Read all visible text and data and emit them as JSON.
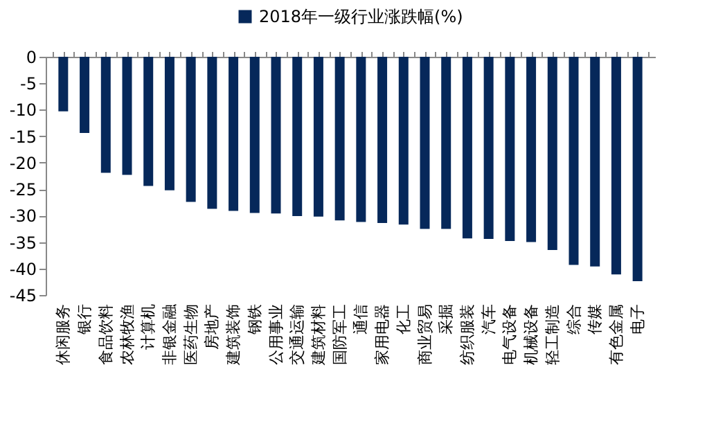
{
  "chart_data": {
    "type": "bar",
    "categories": [
      "休闲服务",
      "银行",
      "食品饮料",
      "农林牧渔",
      "计算机",
      "非银金融",
      "医药生物",
      "房地产",
      "建筑装饰",
      "钢铁",
      "公用事业",
      "交通运输",
      "建筑材料",
      "国防军工",
      "通信",
      "家用电器",
      "化工",
      "商业贸易",
      "采掘",
      "纺织服装",
      "汽车",
      "电气设备",
      "机械设备",
      "轻工制造",
      "综合",
      "传媒",
      "有色金属",
      "电子"
    ],
    "series": [
      {
        "name": "2018年一级行业涨跌幅(%)",
        "color": "#06285a",
        "values": [
          -10.3,
          -14.4,
          -21.9,
          -22.3,
          -24.4,
          -25.2,
          -27.4,
          -28.7,
          -29.1,
          -29.5,
          -29.6,
          -30.1,
          -30.2,
          -30.9,
          -31.2,
          -31.4,
          -31.7,
          -32.5,
          -32.5,
          -34.3,
          -34.4,
          -34.8,
          -35.0,
          -36.5,
          -39.3,
          -39.6,
          -41.1,
          -42.4
        ]
      }
    ],
    "ylim": [
      -45,
      0
    ],
    "yticks": [
      0,
      -5,
      -10,
      -15,
      -20,
      -25,
      -30,
      -35,
      -40,
      -45
    ],
    "grid": false,
    "legend": "top"
  }
}
